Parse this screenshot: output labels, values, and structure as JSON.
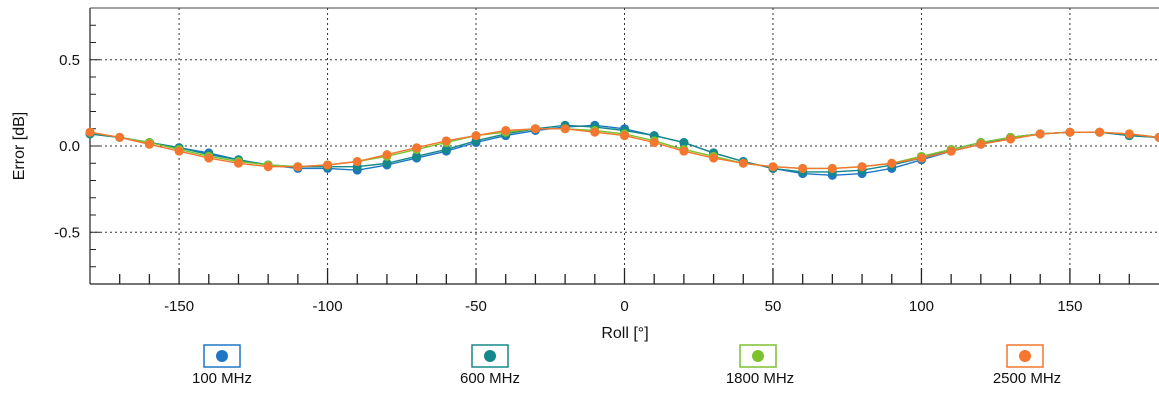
{
  "chart_data": {
    "type": "line",
    "xlabel": "Roll [°]",
    "ylabel": "Error [dB]",
    "xlim": [
      -180,
      180
    ],
    "ylim": [
      -0.8,
      0.8
    ],
    "xticks": [
      -150,
      -100,
      -50,
      0,
      50,
      100,
      150
    ],
    "xtick_labels": [
      "-150",
      "-100",
      "-50",
      "0",
      "50",
      "100",
      "150"
    ],
    "yticks": [
      0.5,
      0.0,
      -0.5
    ],
    "ytick_labels": [
      "0.5",
      "0.0",
      "-0.5"
    ],
    "grid": true,
    "legend_position": "bottom",
    "x": [
      -180,
      -170,
      -160,
      -150,
      -140,
      -130,
      -120,
      -110,
      -100,
      -90,
      -80,
      -70,
      -60,
      -50,
      -40,
      -30,
      -20,
      -10,
      0,
      10,
      20,
      30,
      40,
      50,
      60,
      70,
      80,
      90,
      100,
      110,
      120,
      130,
      140,
      150,
      160,
      170,
      180
    ],
    "series": [
      {
        "name": "100 MHz",
        "color": "#1f77c4",
        "values": [
          0.07,
          0.05,
          0.02,
          -0.01,
          -0.04,
          -0.08,
          -0.11,
          -0.13,
          -0.13,
          -0.14,
          -0.11,
          -0.07,
          -0.03,
          0.02,
          0.06,
          0.09,
          0.11,
          0.12,
          0.1,
          0.06,
          0.02,
          -0.04,
          -0.09,
          -0.13,
          -0.16,
          -0.17,
          -0.16,
          -0.13,
          -0.08,
          -0.03,
          0.01,
          0.05,
          0.07,
          0.08,
          0.08,
          0.06,
          0.05
        ]
      },
      {
        "name": "600 MHz",
        "color": "#14888a",
        "values": [
          0.07,
          0.05,
          0.02,
          -0.01,
          -0.05,
          -0.08,
          -0.11,
          -0.12,
          -0.12,
          -0.12,
          -0.1,
          -0.06,
          -0.02,
          0.03,
          0.07,
          0.1,
          0.12,
          0.11,
          0.09,
          0.06,
          0.02,
          -0.04,
          -0.09,
          -0.13,
          -0.15,
          -0.15,
          -0.14,
          -0.11,
          -0.07,
          -0.02,
          0.02,
          0.05,
          0.07,
          0.08,
          0.08,
          0.06,
          0.05
        ]
      },
      {
        "name": "1800 MHz",
        "color": "#7cc22e",
        "values": [
          0.08,
          0.05,
          0.02,
          -0.02,
          -0.06,
          -0.09,
          -0.11,
          -0.12,
          -0.11,
          -0.09,
          -0.06,
          -0.02,
          0.02,
          0.06,
          0.08,
          0.1,
          0.1,
          0.09,
          0.07,
          0.03,
          -0.02,
          -0.06,
          -0.1,
          -0.12,
          -0.13,
          -0.13,
          -0.12,
          -0.1,
          -0.06,
          -0.02,
          0.02,
          0.05,
          0.07,
          0.08,
          0.08,
          0.07,
          0.05
        ]
      },
      {
        "name": "2500 MHz",
        "color": "#f4762f",
        "values": [
          0.08,
          0.05,
          0.01,
          -0.03,
          -0.07,
          -0.1,
          -0.12,
          -0.12,
          -0.11,
          -0.09,
          -0.05,
          -0.01,
          0.03,
          0.06,
          0.09,
          0.1,
          0.1,
          0.08,
          0.06,
          0.02,
          -0.03,
          -0.07,
          -0.1,
          -0.12,
          -0.13,
          -0.13,
          -0.12,
          -0.1,
          -0.07,
          -0.03,
          0.01,
          0.04,
          0.07,
          0.08,
          0.08,
          0.07,
          0.05
        ]
      }
    ]
  }
}
